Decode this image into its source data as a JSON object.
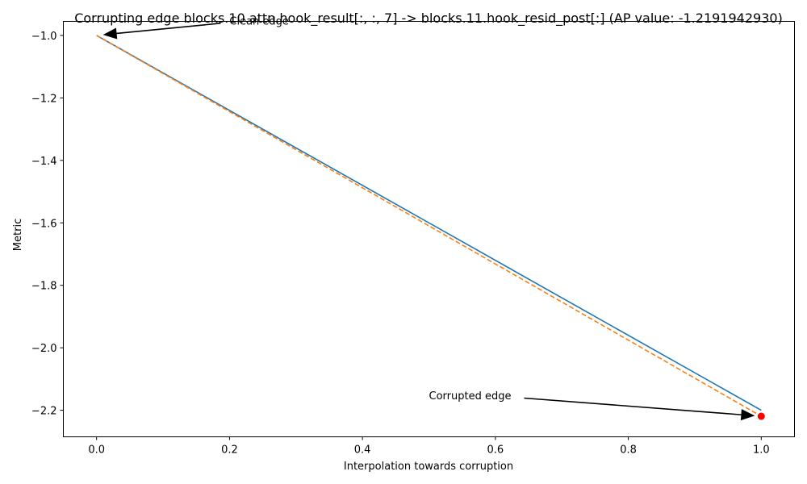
{
  "chart_data": {
    "type": "line",
    "title": "Corrupting edge blocks.10.attn.hook_result[:, :, 7] -> blocks.11.hook_resid_post[:] (AP value: -1.2191942930)",
    "xlabel": "Interpolation towards corruption",
    "ylabel": "Metric",
    "xlim": [
      -0.05,
      1.05
    ],
    "ylim": [
      -2.285,
      -0.955
    ],
    "xticks": [
      0.0,
      0.2,
      0.4,
      0.6,
      0.8,
      1.0
    ],
    "xtick_labels": [
      "0.0",
      "0.2",
      "0.4",
      "0.6",
      "0.8",
      "1.0"
    ],
    "yticks": [
      -1.0,
      -1.2,
      -1.4,
      -1.6,
      -1.8,
      -2.0,
      -2.2
    ],
    "ytick_labels": [
      "−1.0",
      "−1.2",
      "−1.4",
      "−1.6",
      "−1.8",
      "−2.0",
      "−2.2"
    ],
    "grid": false,
    "series": [
      {
        "style": "solid",
        "color": "#1f77b4",
        "x": [
          0.0,
          1.0
        ],
        "y": [
          -1.0,
          -2.2
        ]
      },
      {
        "style": "dashed",
        "color": "#ff7f0e",
        "x": [
          0.0,
          1.0
        ],
        "y": [
          -1.0,
          -2.2192
        ]
      }
    ],
    "points": [
      {
        "x": 1.0,
        "y": -2.2192,
        "color": "#ff0000"
      }
    ],
    "annotations": [
      {
        "text": "Clean edge",
        "text_x": 0.2,
        "text_y": -0.952,
        "arrow_to_x": 0.0,
        "arrow_to_y": -1.0
      },
      {
        "text": "Corrupted edge",
        "text_x": 0.5,
        "text_y": -2.152,
        "arrow_to_x": 1.0,
        "arrow_to_y": -2.2192
      }
    ]
  }
}
